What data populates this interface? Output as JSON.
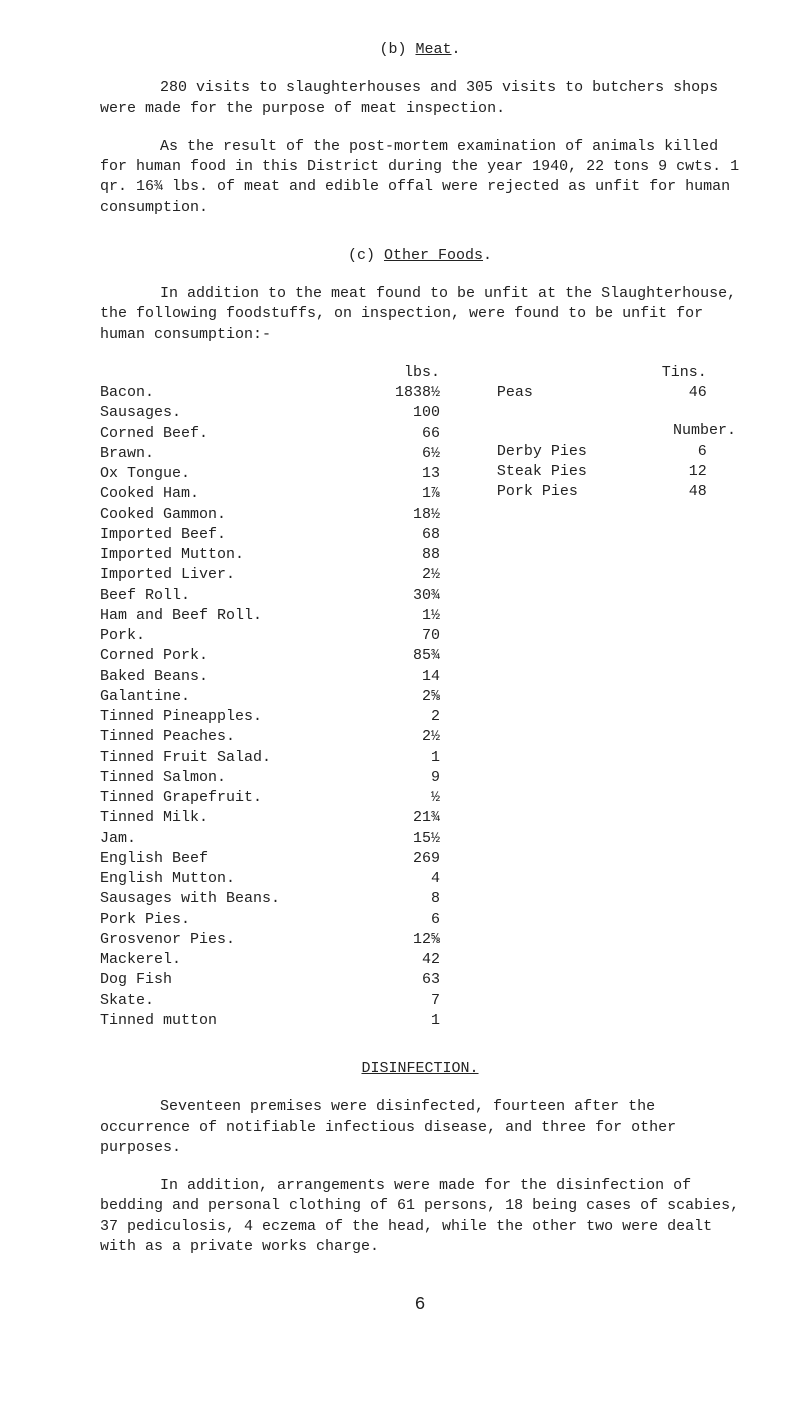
{
  "meatHead": "(b) ",
  "meatHeadU": "Meat",
  "meatHeadDot": ".",
  "p1": "280 visits to slaughterhouses and 305 visits to butchers shops were made for the purpose of meat inspection.",
  "p2": "As the result of the post-mortem examination of animals killed for human food in this District during the year 1940, 22 tons 9 cwts. 1 qr. 16¾ lbs. of meat and edible offal were rejected as unfit for human consumption.",
  "otherHeadPre": "(c)  ",
  "otherHeadU": "Other Foods",
  "otherHeadDot": ".",
  "p3": "In addition to the meat found to be unfit at the Slaughterhouse, the following foodstuffs, on inspection, were found to be unfit for human consumption:-",
  "leftHeader1": "lbs.",
  "rightHeader1": "Tins.",
  "leftRows": [
    {
      "name": "Bacon.",
      "val": "1838½"
    },
    {
      "name": "Sausages.",
      "val": "100"
    },
    {
      "name": "Corned Beef.",
      "val": "66"
    },
    {
      "name": "Brawn.",
      "val": "6½"
    },
    {
      "name": "Ox Tongue.",
      "val": "13"
    },
    {
      "name": "Cooked Ham.",
      "val": "1⅞"
    },
    {
      "name": "Cooked Gammon.",
      "val": "18½"
    },
    {
      "name": "Imported Beef.",
      "val": "68"
    },
    {
      "name": "Imported Mutton.",
      "val": "88"
    },
    {
      "name": "Imported Liver.",
      "val": "2½"
    },
    {
      "name": "Beef Roll.",
      "val": "30¾"
    },
    {
      "name": "Ham and Beef Roll.",
      "val": "1½"
    },
    {
      "name": "Pork.",
      "val": "70"
    },
    {
      "name": "Corned Pork.",
      "val": "85¾"
    },
    {
      "name": "Baked Beans.",
      "val": "14"
    },
    {
      "name": "Galantine.",
      "val": "2⅝"
    },
    {
      "name": "Tinned Pineapples.",
      "val": "2"
    },
    {
      "name": "Tinned Peaches.",
      "val": "2½"
    },
    {
      "name": "Tinned Fruit Salad.",
      "val": "1"
    },
    {
      "name": "Tinned Salmon.",
      "val": "9"
    },
    {
      "name": "Tinned Grapefruit.",
      "val": "½"
    },
    {
      "name": "Tinned Milk.",
      "val": "21¾"
    },
    {
      "name": "Jam.",
      "val": "15½"
    },
    {
      "name": "English Beef",
      "val": "269"
    },
    {
      "name": "English Mutton.",
      "val": "4"
    },
    {
      "name": "Sausages with Beans.",
      "val": "8"
    },
    {
      "name": "Pork Pies.",
      "val": "6"
    },
    {
      "name": "Grosvenor Pies.",
      "val": "12⅝"
    },
    {
      "name": "Mackerel.",
      "val": "42"
    },
    {
      "name": "Dog Fish",
      "val": "63"
    },
    {
      "name": "Skate.",
      "val": "7"
    },
    {
      "name": "Tinned mutton",
      "val": "1"
    }
  ],
  "rightRows1": [
    {
      "name": "Peas",
      "val": "46"
    }
  ],
  "numberLabel": "Number.",
  "rightRows2": [
    {
      "name": "Derby Pies",
      "val": "6"
    },
    {
      "name": "Steak Pies",
      "val": "12"
    },
    {
      "name": "Pork Pies",
      "val": "48"
    }
  ],
  "disinfHead": "DISINFECTION.",
  "p4": "Seventeen premises were disinfected, fourteen after the occurrence of notifiable infectious disease, and three for other purposes.",
  "p5": "In addition, arrangements were made for the disinfection of bedding and personal clothing of 61 persons, 18 being cases of scabies, 37 pediculosis, 4 eczema of the head, while the other two were dealt with as a private works charge.",
  "pageNum": "6"
}
